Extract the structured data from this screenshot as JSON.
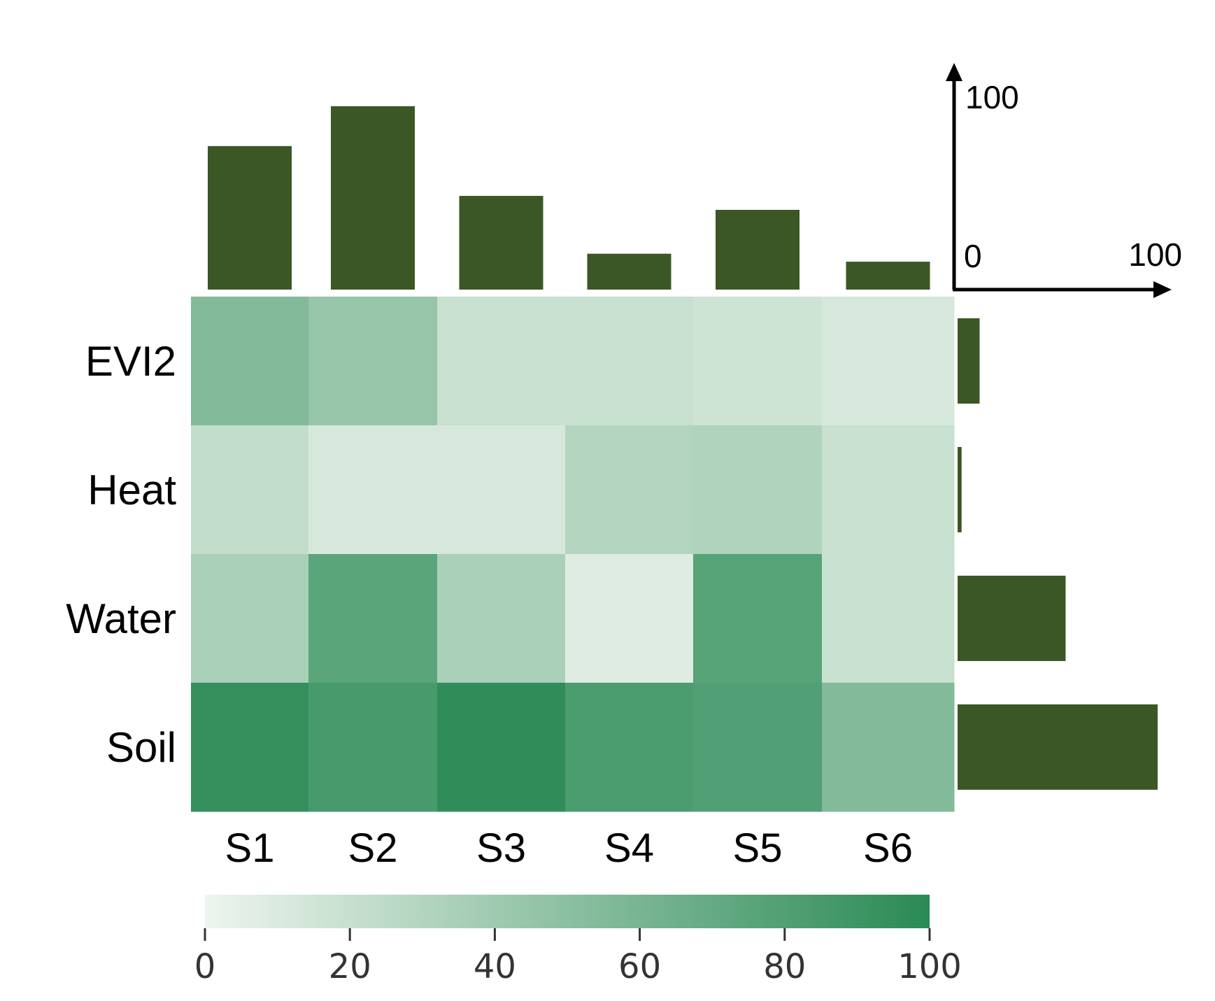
{
  "chart_data": {
    "type": "heatmap",
    "rows": [
      "EVI2",
      "Heat",
      "Water",
      "Soil"
    ],
    "columns": [
      "S1",
      "S2",
      "S3",
      "S4",
      "S5",
      "S6"
    ],
    "values": [
      [
        55,
        45,
        20,
        20,
        17,
        12
      ],
      [
        22,
        12,
        12,
        30,
        32,
        20
      ],
      [
        35,
        75,
        35,
        8,
        77,
        20
      ],
      [
        95,
        85,
        97,
        83,
        80,
        55
      ]
    ],
    "column_totals": [
      72,
      92,
      47,
      18,
      40,
      14
    ],
    "row_totals": [
      11,
      2,
      54,
      100
    ],
    "column_totals_scale": [
      0,
      100
    ],
    "row_totals_scale": [
      0,
      100
    ],
    "scale_labels": {
      "y_min": "0",
      "y_max": "100",
      "x_max": "100"
    },
    "colorbar": {
      "min": 0,
      "max": 100,
      "ticks": [
        "0",
        "20",
        "40",
        "60",
        "80",
        "100"
      ],
      "color_low": "#eef5ee",
      "color_high": "#2a8a55"
    },
    "bar_color": "#3b5725"
  }
}
